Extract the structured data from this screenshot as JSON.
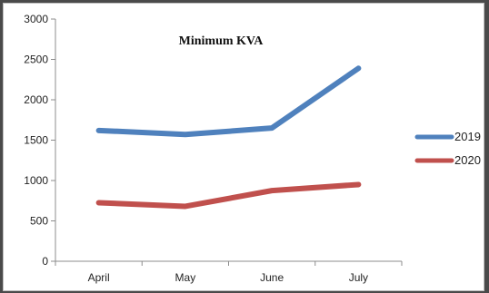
{
  "chart_data": {
    "type": "line",
    "title": "Minimum KVA",
    "categories": [
      "April",
      "May",
      "June",
      "July"
    ],
    "series": [
      {
        "name": "2019",
        "values": [
          1620,
          1570,
          1650,
          2390
        ],
        "color": "#4f81bd"
      },
      {
        "name": "2020",
        "values": [
          725,
          680,
          875,
          950
        ],
        "color": "#c0504d"
      }
    ],
    "yticks": [
      0,
      500,
      1000,
      1500,
      2000,
      2500,
      3000
    ],
    "ylim": [
      0,
      3000
    ],
    "xlabel": "",
    "ylabel": "",
    "grid": false,
    "legend_position": "right"
  }
}
